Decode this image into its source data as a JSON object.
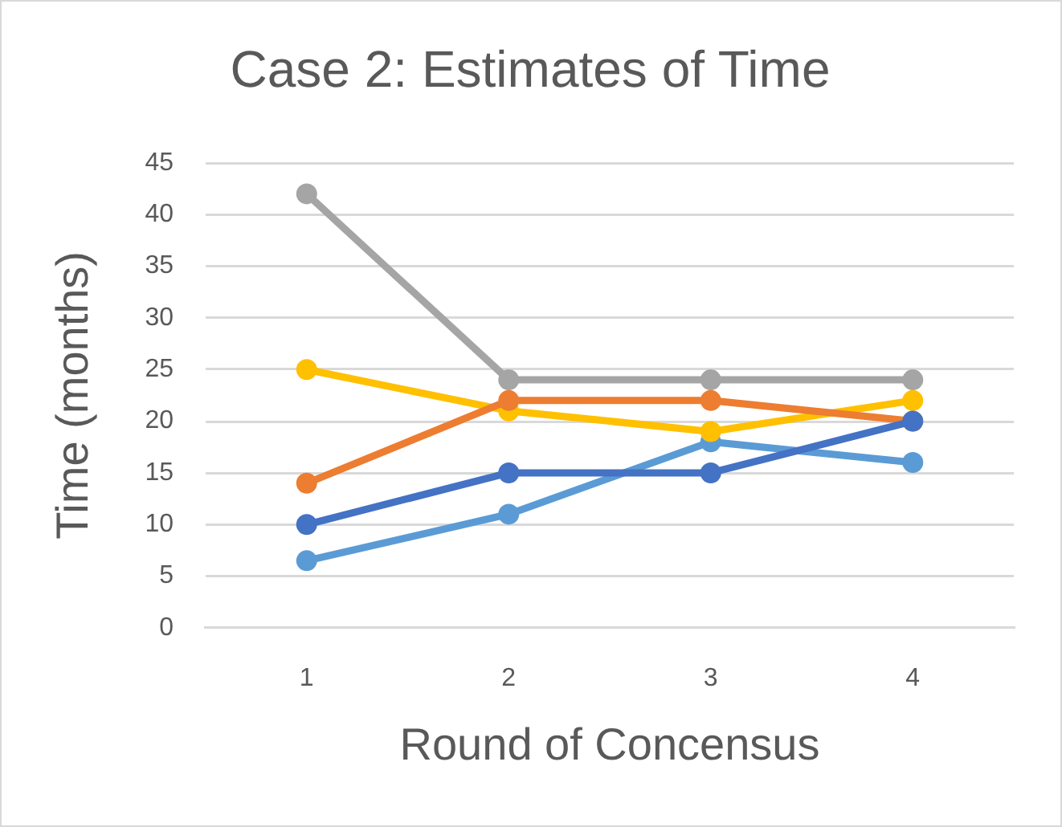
{
  "chart_data": {
    "type": "line",
    "title": "Case 2: Estimates of Time",
    "xlabel": "Round of Concensus",
    "ylabel": "Time (months)",
    "categories": [
      "1",
      "2",
      "3",
      "4"
    ],
    "series": [
      {
        "color": "#4472c4",
        "values": [
          10,
          15,
          15,
          20
        ]
      },
      {
        "color": "#ed7d31",
        "values": [
          14,
          22,
          22,
          20
        ]
      },
      {
        "color": "#a5a5a5",
        "values": [
          42,
          24,
          24,
          24
        ]
      },
      {
        "color": "#ffc000",
        "values": [
          25,
          21,
          19,
          22
        ]
      },
      {
        "color": "#5b9bd5",
        "values": [
          6.5,
          11,
          18,
          16
        ]
      }
    ],
    "ylim": [
      0,
      45
    ],
    "yticks": [
      0,
      5,
      10,
      15,
      20,
      25,
      30,
      35,
      40,
      45
    ],
    "grid": "y",
    "marker": "circle",
    "line_style": "solid"
  }
}
